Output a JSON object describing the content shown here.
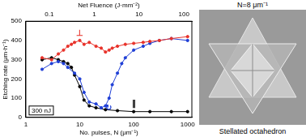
{
  "chart_data": {
    "type": "line",
    "x_label": "No. pulses, N (μm⁻¹)",
    "y_label": "Etching rate (μm·h⁻¹)",
    "x2_label": "Net Fluence (J·mm⁻²)",
    "annotation": "300 nJ",
    "log": "x",
    "grid": false,
    "marker": "circle",
    "xlim": [
      1,
      1200
    ],
    "xticks": [
      1,
      10,
      100,
      1000
    ],
    "x2lim": [
      0.03,
      150
    ],
    "x2ticks": [
      0.1,
      1,
      10,
      100
    ],
    "ylim": [
      0,
      500
    ],
    "yticks": [
      0,
      100,
      200,
      300,
      400,
      500
    ],
    "series": [
      {
        "name": "⊥",
        "color": "#e8322a",
        "x": [
          2,
          3,
          4,
          5,
          6,
          7,
          8,
          10,
          12,
          15,
          20,
          25,
          30,
          35,
          40,
          50,
          70,
          100,
          150,
          200,
          300,
          500,
          1000
        ],
        "values": [
          310,
          300,
          330,
          350,
          370,
          380,
          390,
          400,
          380,
          390,
          370,
          360,
          340,
          350,
          360,
          370,
          380,
          385,
          390,
          395,
          400,
          410,
          420
        ]
      },
      {
        "name": "↻",
        "color": "#1f3fd6",
        "x": [
          2,
          3,
          4,
          5,
          6,
          8,
          10,
          12,
          15,
          20,
          25,
          30,
          35,
          40,
          50,
          60,
          70,
          100,
          150,
          200,
          300,
          500,
          1000
        ],
        "values": [
          250,
          280,
          290,
          280,
          260,
          230,
          200,
          130,
          80,
          70,
          50,
          60,
          100,
          170,
          230,
          280,
          310,
          350,
          370,
          385,
          400,
          410,
          400
        ]
      },
      {
        "name": "∥",
        "color": "#000000",
        "x": [
          2,
          3,
          4,
          5,
          6,
          7,
          8,
          10,
          12,
          15,
          20,
          30,
          50,
          100,
          200,
          500,
          1000
        ],
        "values": [
          300,
          310,
          300,
          290,
          280,
          260,
          220,
          160,
          90,
          60,
          50,
          40,
          35,
          30,
          30,
          30,
          30
        ]
      }
    ]
  },
  "image": {
    "title": "N=8 μm⁻¹",
    "caption": "Stellated octahedron"
  }
}
